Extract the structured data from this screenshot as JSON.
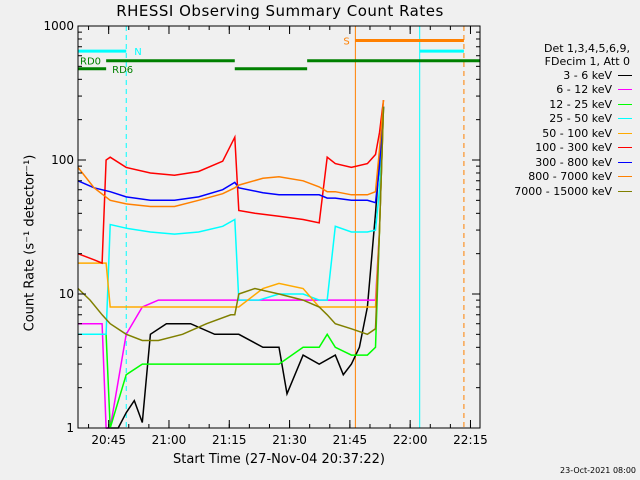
{
  "chart_data": {
    "type": "line",
    "title": "RHESSI Observing Summary Count Rates",
    "xlabel": "Start Time (27-Nov-04 20:37:22)",
    "ylabel": "Count Rate (s⁻¹ detector⁻¹)",
    "y_scale": "log",
    "ylim": [
      1,
      1000
    ],
    "xlim_minutes": [
      0,
      100
    ],
    "x_ticks": [
      "20:45",
      "21:00",
      "21:15",
      "21:30",
      "21:45",
      "22:00",
      "22:15"
    ],
    "y_ticks": [
      "1",
      "10",
      "100",
      "1000"
    ],
    "legend_header": [
      "Det 1,3,4,5,6,9,",
      "FDecim 1, Att 0"
    ],
    "legend_position": "right",
    "series": [
      {
        "name": "3 - 6 keV",
        "color": "#000000",
        "x": [
          7,
          8,
          9,
          10,
          12,
          14,
          16,
          18,
          22,
          28,
          34,
          40,
          46,
          50,
          52,
          56,
          60,
          64,
          66,
          68,
          70,
          72,
          74,
          76
        ],
        "values": [
          1,
          1,
          1,
          1,
          1.3,
          1.6,
          1.1,
          5,
          6,
          6,
          5,
          5,
          4,
          4,
          1.8,
          3.5,
          3,
          3.5,
          2.5,
          3,
          4,
          8,
          40,
          250
        ]
      },
      {
        "name": "6 - 12 keV",
        "color": "#ff00ff",
        "x": [
          0,
          2,
          4,
          6,
          7,
          8,
          12,
          16,
          20,
          26,
          32,
          36,
          39,
          40,
          45,
          50,
          56,
          60,
          62,
          64,
          68,
          72,
          74,
          75,
          76
        ],
        "values": [
          6,
          6,
          6,
          6,
          1,
          1,
          5,
          8,
          9,
          9,
          9,
          9,
          9,
          9,
          9,
          9,
          9,
          9,
          9,
          9,
          9,
          9,
          9,
          30,
          250
        ]
      },
      {
        "name": "12 - 25 keV",
        "color": "#00ff00",
        "x": [
          0,
          3,
          7,
          8,
          12,
          16,
          20,
          26,
          32,
          38,
          39,
          40,
          45,
          50,
          56,
          60,
          62,
          64,
          68,
          72,
          74,
          75,
          76
        ],
        "values": [
          5,
          5,
          5,
          1,
          2.5,
          3,
          3,
          3,
          3,
          3,
          3,
          3,
          3,
          3,
          4,
          4,
          5,
          4,
          3.5,
          3.5,
          4,
          30,
          250
        ]
      },
      {
        "name": "25 - 50 keV",
        "color": "#00ffff",
        "x": [
          0,
          4,
          7,
          8,
          12,
          18,
          24,
          30,
          36,
          39,
          40,
          45,
          50,
          56,
          60,
          62,
          64,
          68,
          72,
          74,
          75,
          76
        ],
        "values": [
          5,
          5,
          5,
          33,
          31,
          29,
          28,
          29,
          32,
          36,
          9,
          9,
          10,
          10,
          9,
          9,
          32,
          29,
          29,
          30,
          60,
          250
        ]
      },
      {
        "name": "50 - 100 keV",
        "color": "#ffaa00",
        "x": [
          0,
          4,
          7,
          8,
          12,
          18,
          24,
          30,
          36,
          39,
          40,
          46,
          50,
          56,
          60,
          62,
          64,
          68,
          72,
          74,
          75,
          76
        ],
        "values": [
          17,
          17,
          17,
          8,
          8,
          8,
          8,
          8,
          8,
          8,
          8,
          11,
          12,
          11,
          8,
          8,
          8,
          8,
          8,
          8,
          30,
          250
        ]
      },
      {
        "name": "100 - 300 keV",
        "color": "#ff0000",
        "x": [
          0,
          4,
          6,
          7,
          8,
          12,
          18,
          24,
          30,
          36,
          39,
          40,
          44,
          50,
          56,
          60,
          62,
          64,
          68,
          72,
          74,
          75,
          76
        ],
        "values": [
          20,
          18,
          17,
          100,
          105,
          88,
          80,
          77,
          82,
          98,
          148,
          42,
          40,
          38,
          36,
          34,
          105,
          94,
          88,
          94,
          110,
          160,
          280
        ]
      },
      {
        "name": "300 - 800 keV",
        "color": "#0000ff",
        "x": [
          0,
          4,
          8,
          12,
          18,
          24,
          30,
          36,
          39,
          40,
          46,
          50,
          56,
          60,
          62,
          64,
          68,
          72,
          74,
          75,
          76
        ],
        "values": [
          70,
          62,
          58,
          53,
          50,
          50,
          53,
          60,
          68,
          62,
          57,
          55,
          55,
          55,
          52,
          52,
          50,
          50,
          48,
          90,
          250
        ]
      },
      {
        "name": "800 - 7000 keV",
        "color": "#ff8000",
        "x": [
          0,
          4,
          8,
          12,
          18,
          24,
          30,
          36,
          39,
          40,
          46,
          50,
          56,
          60,
          62,
          64,
          68,
          72,
          74,
          75,
          76
        ],
        "values": [
          88,
          62,
          50,
          47,
          45,
          45,
          50,
          56,
          62,
          65,
          73,
          75,
          70,
          63,
          58,
          58,
          55,
          55,
          58,
          120,
          280
        ]
      },
      {
        "name": "7000 - 15000 keV",
        "color": "#808000",
        "x": [
          0,
          3,
          6,
          8,
          12,
          16,
          20,
          26,
          32,
          38,
          39,
          40,
          44,
          50,
          56,
          60,
          62,
          64,
          68,
          72,
          74,
          75,
          76
        ],
        "values": [
          11,
          9,
          7,
          6,
          5,
          4.5,
          4.5,
          5,
          6,
          7,
          7,
          10,
          11,
          10,
          9,
          8,
          7,
          6,
          5.5,
          5,
          5.5,
          30,
          250
        ]
      }
    ],
    "state_bars": [
      {
        "label": "RD0",
        "color": "#008000",
        "x_start": 0,
        "x_end": 7,
        "y": 480
      },
      {
        "label": "RD6",
        "color": "#008000",
        "x_start": 7,
        "x_end": 39,
        "y": 550
      },
      {
        "label": "",
        "color": "#008000",
        "x_start": 39,
        "x_end": 57,
        "y": 480
      },
      {
        "label": "",
        "color": "#008000",
        "x_start": 57,
        "x_end": 100,
        "y": 550
      },
      {
        "label": "N",
        "color": "#00ffff",
        "x_start": 0,
        "x_end": 12,
        "y": 650
      },
      {
        "label": "",
        "color": "#00ffff",
        "x_start": 85,
        "x_end": 96,
        "y": 650
      },
      {
        "label": "S",
        "color": "#ff8000",
        "x_start": 69,
        "x_end": 96,
        "y": 780
      }
    ],
    "vertical_markers": [
      {
        "color": "#00ffff",
        "style": "dashed",
        "x": 12
      },
      {
        "color": "#ff8000",
        "style": "solid",
        "x": 69
      },
      {
        "color": "#00ffff",
        "style": "solid",
        "x": 85
      },
      {
        "color": "#ff8000",
        "style": "dashed",
        "x": 96
      }
    ],
    "footer": "23-Oct-2021 08:00"
  }
}
